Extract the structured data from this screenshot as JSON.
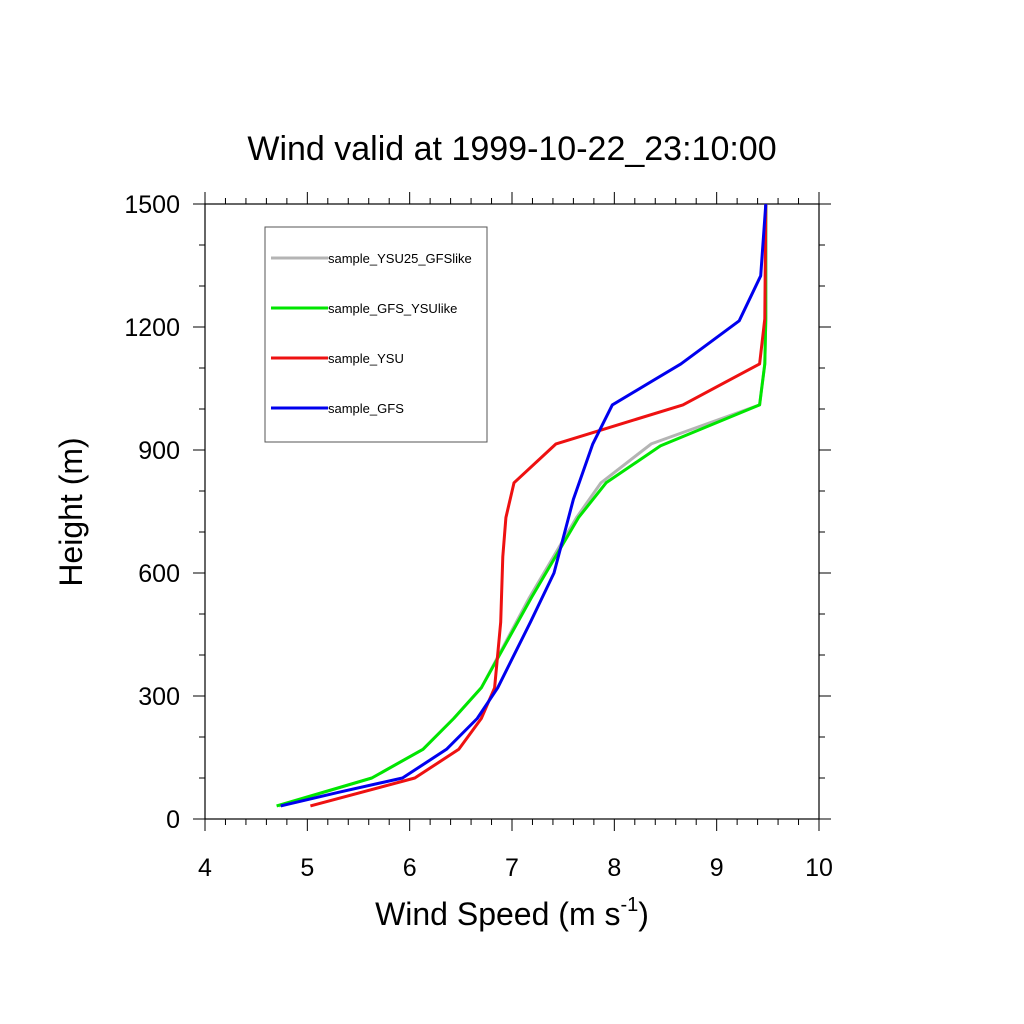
{
  "chart_data": {
    "type": "line",
    "title": "Wind valid at 1999-10-22_23:10:00",
    "xlabel": "Wind Speed (m s",
    "xlabel_sup": "-1",
    "xlabel_end": ")",
    "ylabel": "Height (m)",
    "xlim": [
      4,
      10
    ],
    "ylim": [
      0,
      1500
    ],
    "xticks": [
      4,
      5,
      6,
      7,
      8,
      9,
      10
    ],
    "yticks": [
      0,
      300,
      600,
      900,
      1200,
      1500
    ],
    "xtick_labels": [
      "4",
      "5",
      "6",
      "7",
      "8",
      "9",
      "10"
    ],
    "ytick_labels": [
      "0",
      "300",
      "600",
      "900",
      "1200",
      "1500"
    ],
    "legend_position": "top-left",
    "series": [
      {
        "name": "sample_YSU25_GFSlike",
        "color": "#b4b4b4",
        "points": [
          [
            4.72,
            32
          ],
          [
            5.63,
            100
          ],
          [
            6.13,
            170
          ],
          [
            6.43,
            245
          ],
          [
            6.7,
            320
          ],
          [
            7.17,
            540
          ],
          [
            7.63,
            735
          ],
          [
            7.87,
            820
          ],
          [
            8.36,
            915
          ],
          [
            9.42,
            1010
          ],
          [
            9.47,
            1110
          ],
          [
            9.48,
            1220
          ],
          [
            9.48,
            1500
          ]
        ]
      },
      {
        "name": "sample_GFS_YSUlike",
        "color": "#00e600",
        "points": [
          [
            4.7,
            32
          ],
          [
            5.63,
            100
          ],
          [
            6.13,
            170
          ],
          [
            6.43,
            245
          ],
          [
            6.7,
            320
          ],
          [
            7.19,
            540
          ],
          [
            7.65,
            735
          ],
          [
            7.92,
            820
          ],
          [
            8.45,
            910
          ],
          [
            9.42,
            1010
          ],
          [
            9.47,
            1110
          ],
          [
            9.48,
            1220
          ],
          [
            9.48,
            1500
          ]
        ]
      },
      {
        "name": "sample_YSU",
        "color": "#ee1111",
        "points": [
          [
            5.03,
            32
          ],
          [
            6.05,
            100
          ],
          [
            6.48,
            170
          ],
          [
            6.7,
            245
          ],
          [
            6.83,
            320
          ],
          [
            6.89,
            480
          ],
          [
            6.91,
            640
          ],
          [
            6.94,
            735
          ],
          [
            7.02,
            820
          ],
          [
            7.43,
            915
          ],
          [
            8.67,
            1010
          ],
          [
            9.42,
            1110
          ],
          [
            9.47,
            1220
          ],
          [
            9.48,
            1500
          ]
        ]
      },
      {
        "name": "sample_GFS",
        "color": "#0000ee",
        "points": [
          [
            4.74,
            32
          ],
          [
            5.3,
            65
          ],
          [
            5.93,
            100
          ],
          [
            6.36,
            170
          ],
          [
            6.66,
            245
          ],
          [
            6.86,
            320
          ],
          [
            7.0,
            390
          ],
          [
            7.18,
            480
          ],
          [
            7.41,
            600
          ],
          [
            7.6,
            780
          ],
          [
            7.79,
            915
          ],
          [
            7.98,
            1010
          ],
          [
            8.65,
            1110
          ],
          [
            9.22,
            1215
          ],
          [
            9.43,
            1325
          ],
          [
            9.48,
            1500
          ]
        ]
      }
    ]
  }
}
